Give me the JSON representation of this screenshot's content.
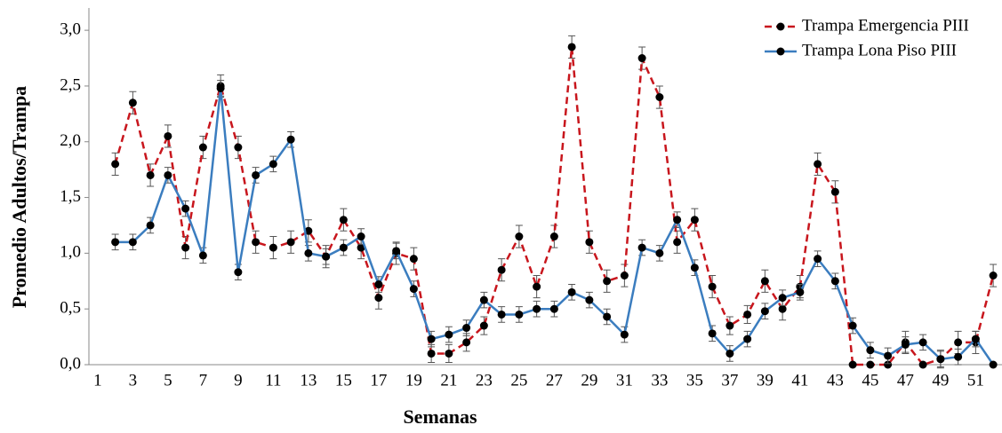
{
  "chart_data": {
    "type": "line",
    "x_label": "Semanas",
    "y_label": "Promedio Adultos/Trampa",
    "categories": [
      "1",
      null,
      "3",
      null,
      "5",
      null,
      "7",
      null,
      "9",
      null,
      "11",
      null,
      "13",
      null,
      "15",
      null,
      "17",
      null,
      "19",
      null,
      "21",
      null,
      "23",
      null,
      "25",
      null,
      "27",
      null,
      "29",
      null,
      "31",
      null,
      "33",
      null,
      "35",
      null,
      "37",
      null,
      "39",
      null,
      "41",
      null,
      "43",
      null,
      "45",
      null,
      "47",
      null,
      "49",
      null,
      "51",
      null
    ],
    "series": [
      {
        "name": "Trampa Emergencia PIII",
        "color": "#c8161d",
        "line_style": "dashed",
        "values": [
          null,
          1.8,
          2.35,
          1.7,
          2.05,
          1.05,
          1.95,
          2.5,
          1.95,
          1.1,
          1.05,
          1.1,
          1.2,
          0.97,
          1.3,
          1.05,
          0.6,
          1.0,
          0.95,
          0.1,
          0.1,
          0.2,
          0.35,
          0.85,
          1.15,
          0.7,
          1.15,
          2.85,
          1.1,
          0.75,
          0.8,
          2.75,
          2.4,
          1.1,
          1.3,
          0.7,
          0.35,
          0.45,
          0.75,
          0.5,
          0.7,
          1.8,
          1.55,
          0,
          0,
          0,
          0.2,
          0,
          0.05,
          0.2,
          0.2,
          0.8
        ],
        "errors": [
          null,
          0.1,
          0.1,
          0.1,
          0.1,
          0.1,
          0.1,
          0.1,
          0.1,
          0.1,
          0.1,
          0.1,
          0.1,
          0.1,
          0.1,
          0.1,
          0.1,
          0.1,
          0.1,
          0.08,
          0.08,
          0.08,
          0.08,
          0.1,
          0.1,
          0.1,
          0.1,
          0.1,
          0.1,
          0.1,
          0.1,
          0.1,
          0.1,
          0.1,
          0.1,
          0.1,
          0.08,
          0.08,
          0.1,
          0.1,
          0.1,
          0.1,
          0.1,
          0,
          0,
          0,
          0.1,
          0,
          0.08,
          0.1,
          0.1,
          0.1
        ]
      },
      {
        "name": "Trampa Lona Piso PIII",
        "color": "#3b7dbf",
        "line_style": "solid",
        "values": [
          null,
          1.1,
          1.1,
          1.25,
          1.7,
          1.4,
          0.98,
          2.48,
          0.83,
          1.7,
          1.8,
          2.02,
          1.0,
          0.97,
          1.05,
          1.15,
          0.72,
          1.02,
          0.68,
          0.23,
          0.27,
          0.33,
          0.58,
          0.45,
          0.45,
          0.5,
          0.5,
          0.65,
          0.58,
          0.43,
          0.27,
          1.05,
          1.0,
          1.3,
          0.87,
          0.28,
          0.1,
          0.23,
          0.48,
          0.6,
          0.65,
          0.95,
          0.75,
          0.35,
          0.13,
          0.08,
          0.18,
          0.2,
          0.05,
          0.07,
          0.23,
          0
        ],
        "errors": [
          null,
          0.07,
          0.07,
          0.07,
          0.07,
          0.07,
          0.07,
          0.07,
          0.07,
          0.07,
          0.07,
          0.07,
          0.07,
          0.07,
          0.07,
          0.07,
          0.07,
          0.07,
          0.07,
          0.07,
          0.07,
          0.07,
          0.07,
          0.07,
          0.07,
          0.07,
          0.07,
          0.07,
          0.07,
          0.07,
          0.07,
          0.07,
          0.07,
          0.07,
          0.07,
          0.07,
          0.07,
          0.07,
          0.07,
          0.07,
          0.07,
          0.07,
          0.07,
          0.07,
          0.07,
          0.07,
          0.07,
          0.07,
          0.07,
          0.07,
          0.07,
          0
        ]
      }
    ],
    "ylim": [
      0,
      3.2
    ],
    "yticks": [
      {
        "value": 0,
        "label": "0,0"
      },
      {
        "value": 0.5,
        "label": "0,5"
      },
      {
        "value": 1,
        "label": "1,0"
      },
      {
        "value": 1.5,
        "label": "1,5"
      },
      {
        "value": 2,
        "label": "2,0"
      },
      {
        "value": 2.5,
        "label": "2,5"
      },
      {
        "value": 3,
        "label": "3,0"
      }
    ],
    "legend": "top-right",
    "grid": false
  }
}
